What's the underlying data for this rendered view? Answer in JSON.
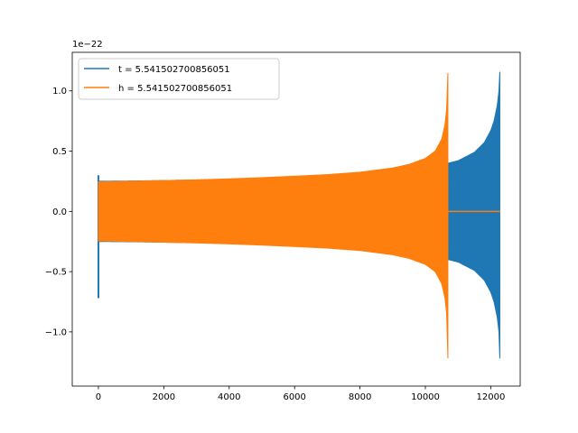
{
  "chart_data": {
    "type": "line",
    "title": "",
    "xlabel": "",
    "ylabel": "",
    "y_offset_label": "1e−22",
    "xlim": [
      -800,
      12900
    ],
    "ylim": [
      -1.45,
      1.32
    ],
    "x_ticks": [
      0,
      2000,
      4000,
      6000,
      8000,
      10000,
      12000
    ],
    "y_ticks": [
      -1.0,
      -0.5,
      0.0,
      0.5,
      1.0
    ],
    "x_tick_labels": [
      "0",
      "2000",
      "4000",
      "6000",
      "8000",
      "10000",
      "12000"
    ],
    "y_tick_labels": [
      "−1.0",
      "−0.5",
      "0.0",
      "0.5",
      "1.0"
    ],
    "grid": false,
    "legend_position": "upper-left",
    "series": [
      {
        "name": "t = 5.541502700856051",
        "color": "#1f77b4",
        "x_start": 0,
        "x_merger": 12290,
        "envelope_x": [
          0,
          1000,
          2000,
          3000,
          4000,
          5000,
          6000,
          7000,
          8000,
          9000,
          10000,
          10700,
          11000,
          11500,
          11800,
          12000,
          12100,
          12200,
          12250,
          12290
        ],
        "envelope_upper": [
          0.25,
          0.252,
          0.256,
          0.26,
          0.265,
          0.27,
          0.276,
          0.284,
          0.294,
          0.31,
          0.34,
          0.4,
          0.42,
          0.49,
          0.57,
          0.67,
          0.75,
          0.88,
          1.0,
          1.23
        ],
        "envelope_lower": [
          -0.25,
          -0.252,
          -0.256,
          -0.26,
          -0.265,
          -0.27,
          -0.276,
          -0.284,
          -0.294,
          -0.31,
          -0.34,
          -0.4,
          -0.42,
          -0.49,
          -0.57,
          -0.67,
          -0.75,
          -0.88,
          -1.0,
          -1.32
        ],
        "initial_spike": [
          0.3,
          -0.72
        ]
      },
      {
        "name": "h = 5.541502700856051",
        "color": "#ff7f0e",
        "x_start": 0,
        "x_merger": 10700,
        "x_end": 12290,
        "envelope_x": [
          0,
          1000,
          2000,
          3000,
          4000,
          5000,
          6000,
          7000,
          8000,
          9000,
          9500,
          10000,
          10300,
          10500,
          10600,
          10650,
          10700
        ],
        "envelope_upper": [
          0.245,
          0.25,
          0.256,
          0.262,
          0.27,
          0.28,
          0.292,
          0.305,
          0.325,
          0.36,
          0.39,
          0.44,
          0.5,
          0.6,
          0.72,
          0.85,
          1.23
        ],
        "envelope_lower": [
          -0.245,
          -0.25,
          -0.256,
          -0.262,
          -0.27,
          -0.28,
          -0.292,
          -0.305,
          -0.325,
          -0.36,
          -0.39,
          -0.44,
          -0.5,
          -0.6,
          -0.72,
          -0.85,
          -1.32
        ],
        "post_merger_value": 0.0
      }
    ]
  }
}
